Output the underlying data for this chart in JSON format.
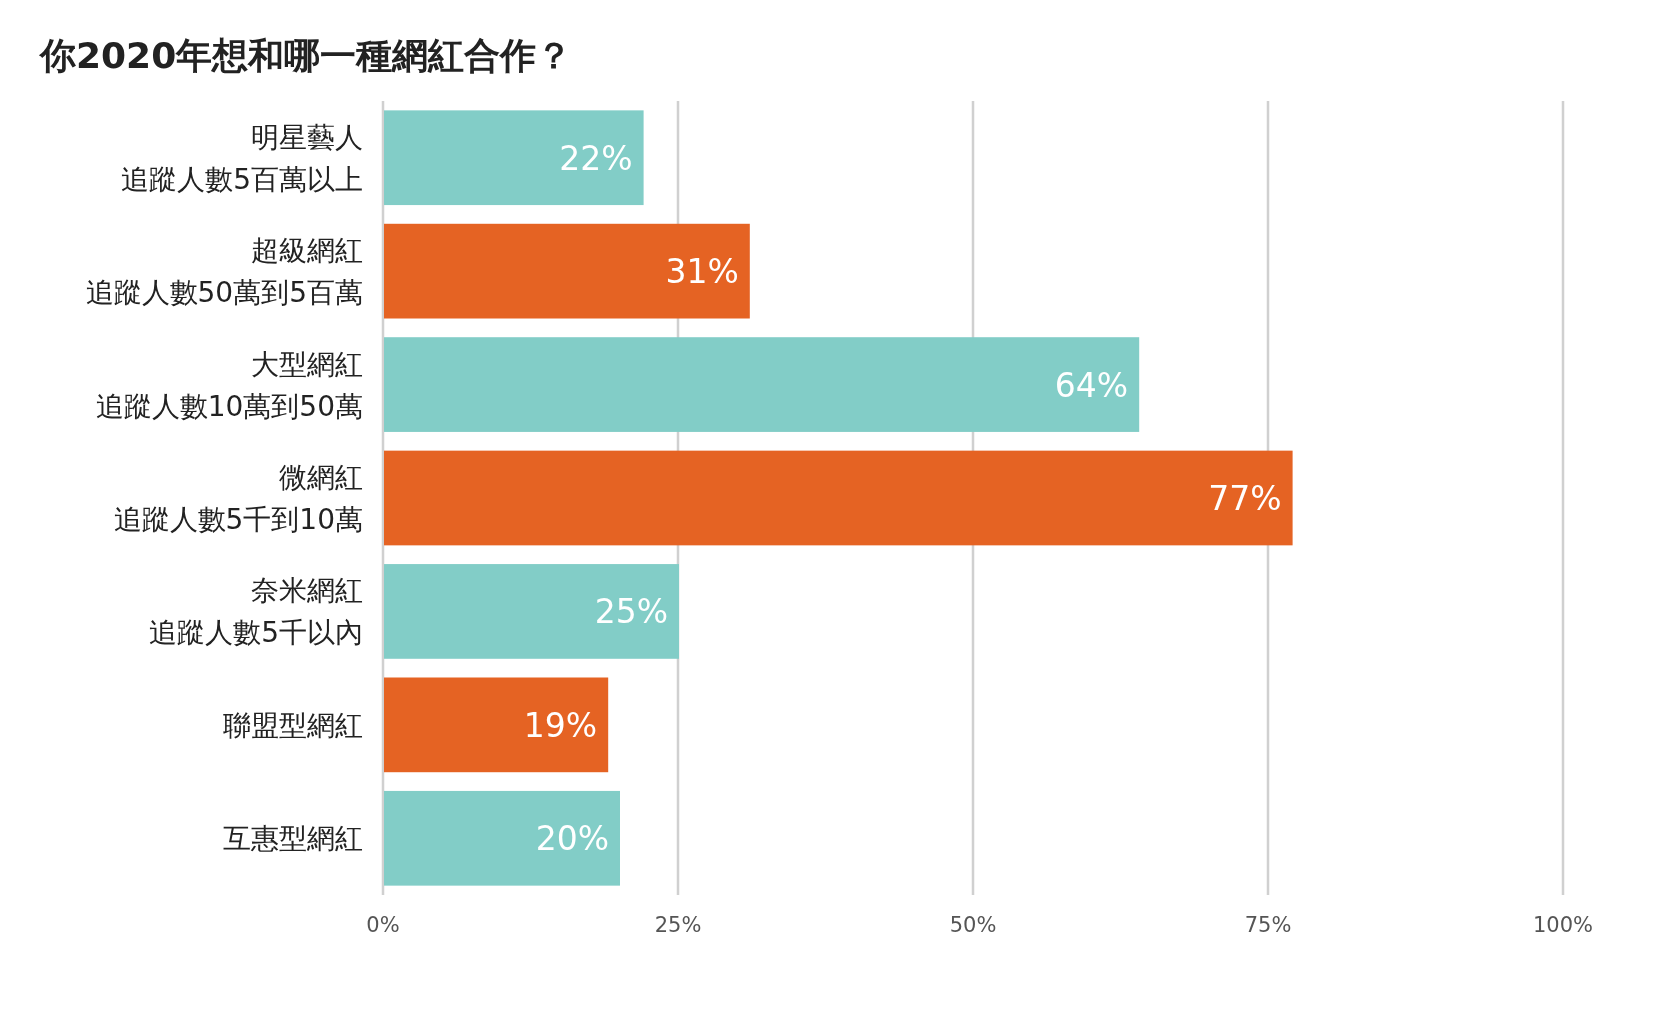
{
  "chart_data": {
    "type": "bar",
    "orientation": "horizontal",
    "title": "你2020年想和哪一種網紅合作？",
    "categories": [
      "明星藝人追蹤人數5百萬以上",
      "超級網紅追蹤人數50萬到5百萬",
      "大型網紅追蹤人數10萬到50萬",
      "微網紅追蹤人數5千到10萬",
      "奈米網紅追蹤人數5千以內",
      "聯盟型網紅",
      "互惠型網紅"
    ],
    "values": [
      22,
      31,
      64,
      77,
      25,
      19,
      20
    ],
    "colors": [
      "#82cdc7",
      "#e56323",
      "#82cdc7",
      "#e56323",
      "#82cdc7",
      "#e56323",
      "#82cdc7"
    ],
    "value_labels": [
      "22%",
      "31%",
      "64%",
      "77%",
      "25%",
      "19%",
      "20%"
    ],
    "xlim": [
      0,
      100
    ],
    "xticks": [
      {
        "value": 0,
        "label": "0%"
      },
      {
        "value": 25,
        "label": "25%"
      },
      {
        "value": 50,
        "label": "50%"
      },
      {
        "value": 75,
        "label": "75%"
      },
      {
        "value": 100,
        "label": "100%"
      }
    ],
    "grid": "x"
  }
}
